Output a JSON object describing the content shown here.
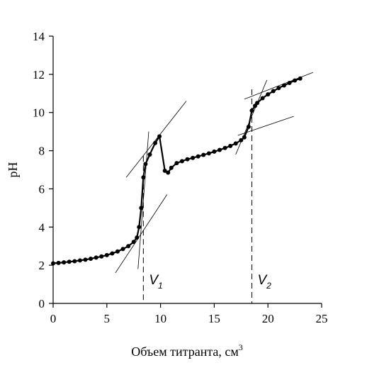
{
  "chart_data": {
    "type": "line",
    "xlabel": "Объем титранта, см",
    "xlabel_sup": "3",
    "ylabel": "pH",
    "xlim": [
      0,
      25
    ],
    "ylim": [
      0,
      14
    ],
    "xticks": [
      "0",
      "5",
      "10",
      "15",
      "20",
      "25"
    ],
    "yticks": [
      "0",
      "2",
      "4",
      "6",
      "8",
      "10",
      "12",
      "14"
    ],
    "grid": false,
    "legend": "none",
    "series": [
      {
        "points": [
          [
            0.0,
            2.1
          ],
          [
            0.5,
            2.12
          ],
          [
            1.0,
            2.15
          ],
          [
            1.5,
            2.18
          ],
          [
            2.0,
            2.21
          ],
          [
            2.5,
            2.25
          ],
          [
            3.0,
            2.29
          ],
          [
            3.5,
            2.34
          ],
          [
            4.0,
            2.4
          ],
          [
            4.5,
            2.46
          ],
          [
            5.0,
            2.53
          ],
          [
            5.5,
            2.62
          ],
          [
            6.0,
            2.72
          ],
          [
            6.5,
            2.85
          ],
          [
            7.0,
            3.0
          ],
          [
            7.5,
            3.22
          ],
          [
            7.8,
            3.45
          ],
          [
            8.0,
            4.0
          ],
          [
            8.2,
            5.0
          ],
          [
            8.4,
            6.6
          ],
          [
            8.6,
            7.3
          ],
          [
            9.0,
            7.8
          ],
          [
            9.5,
            8.4
          ],
          [
            9.9,
            8.75
          ],
          [
            10.4,
            6.95
          ],
          [
            10.7,
            6.85
          ],
          [
            11.0,
            7.1
          ],
          [
            11.5,
            7.35
          ],
          [
            12.0,
            7.45
          ],
          [
            12.5,
            7.55
          ],
          [
            13.0,
            7.62
          ],
          [
            13.5,
            7.7
          ],
          [
            14.0,
            7.78
          ],
          [
            14.5,
            7.86
          ],
          [
            15.0,
            7.95
          ],
          [
            15.5,
            8.04
          ],
          [
            16.0,
            8.14
          ],
          [
            16.5,
            8.25
          ],
          [
            17.0,
            8.38
          ],
          [
            17.5,
            8.55
          ],
          [
            17.8,
            8.7
          ],
          [
            18.2,
            9.25
          ],
          [
            18.5,
            10.1
          ],
          [
            18.8,
            10.35
          ],
          [
            19.0,
            10.5
          ],
          [
            19.5,
            10.75
          ],
          [
            20.0,
            10.95
          ],
          [
            20.5,
            11.12
          ],
          [
            21.0,
            11.28
          ],
          [
            21.5,
            11.42
          ],
          [
            22.0,
            11.55
          ],
          [
            22.5,
            11.68
          ],
          [
            23.0,
            11.78
          ]
        ]
      }
    ],
    "tangents": [
      [
        [
          5.8,
          1.6
        ],
        [
          10.6,
          5.7
        ]
      ],
      [
        [
          7.9,
          1.8
        ],
        [
          8.9,
          9.0
        ]
      ],
      [
        [
          6.8,
          6.6
        ],
        [
          12.4,
          10.6
        ]
      ],
      [
        [
          17.0,
          7.8
        ],
        [
          19.9,
          11.7
        ]
      ],
      [
        [
          17.2,
          8.8
        ],
        [
          22.4,
          9.8
        ]
      ],
      [
        [
          17.8,
          10.7
        ],
        [
          24.2,
          12.1
        ]
      ]
    ],
    "equivalence_points": [
      {
        "x": 8.4,
        "label": "V",
        "sub": "1"
      },
      {
        "x": 18.5,
        "label": "V",
        "sub": "2"
      }
    ]
  }
}
